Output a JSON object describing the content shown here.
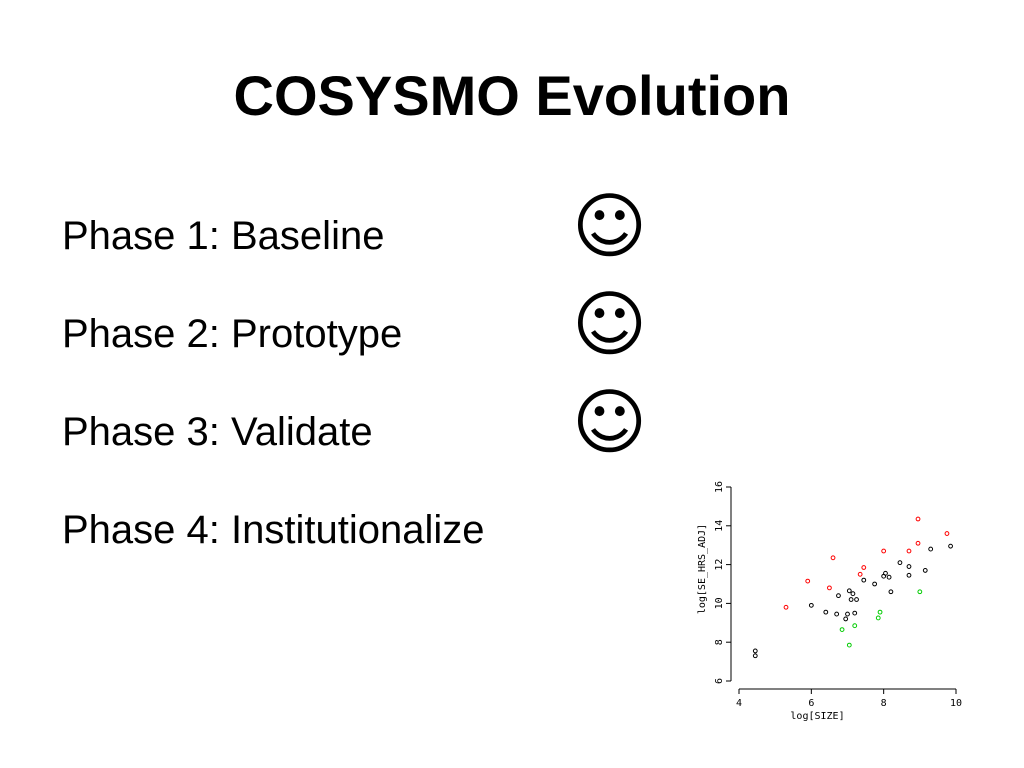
{
  "slide": {
    "title": "COSYSMO Evolution",
    "phases": [
      {
        "label": "Phase 1: Baseline",
        "icon": "smiley-icon",
        "symbol": "☺"
      },
      {
        "label": "Phase 2: Prototype",
        "icon": "smiley-icon",
        "symbol": "☺"
      },
      {
        "label": "Phase 3: Validate",
        "icon": "smiley-icon",
        "symbol": "☺"
      },
      {
        "label": "Phase 4: Institutionalize"
      }
    ]
  },
  "chart_data": {
    "type": "scatter",
    "title": "",
    "xlabel": "log[SIZE]",
    "ylabel": "log[SE_HRS_ADJ]",
    "xlim": [
      4,
      10
    ],
    "ylim": [
      6,
      16
    ],
    "xticks": [
      4,
      6,
      8,
      10
    ],
    "yticks": [
      6,
      8,
      10,
      12,
      14,
      16
    ],
    "grid": false,
    "series": [
      {
        "color": "#000000",
        "points": [
          [
            4.45,
            7.55
          ],
          [
            4.45,
            7.3
          ],
          [
            6.0,
            9.9
          ],
          [
            6.4,
            9.55
          ],
          [
            6.7,
            9.45
          ],
          [
            6.75,
            10.4
          ],
          [
            6.95,
            9.2
          ],
          [
            7.0,
            9.45
          ],
          [
            7.05,
            10.65
          ],
          [
            7.15,
            10.5
          ],
          [
            7.1,
            10.2
          ],
          [
            7.25,
            10.2
          ],
          [
            7.2,
            9.5
          ],
          [
            7.45,
            11.2
          ],
          [
            7.75,
            11.0
          ],
          [
            8.0,
            11.4
          ],
          [
            8.05,
            11.55
          ],
          [
            8.15,
            11.35
          ],
          [
            8.2,
            10.6
          ],
          [
            8.45,
            12.1
          ],
          [
            8.7,
            11.45
          ],
          [
            8.7,
            11.9
          ],
          [
            9.15,
            11.7
          ],
          [
            9.3,
            12.8
          ],
          [
            9.85,
            12.95
          ]
        ]
      },
      {
        "color": "#ff0000",
        "points": [
          [
            5.3,
            9.8
          ],
          [
            5.9,
            11.15
          ],
          [
            6.5,
            10.8
          ],
          [
            6.6,
            12.35
          ],
          [
            7.35,
            11.5
          ],
          [
            7.45,
            11.85
          ],
          [
            8.0,
            12.7
          ],
          [
            8.7,
            12.7
          ],
          [
            8.95,
            13.1
          ],
          [
            8.95,
            14.35
          ],
          [
            9.75,
            13.6
          ]
        ]
      },
      {
        "color": "#00cc00",
        "points": [
          [
            6.85,
            8.65
          ],
          [
            7.05,
            7.85
          ],
          [
            7.2,
            8.85
          ],
          [
            7.85,
            9.25
          ],
          [
            7.9,
            9.55
          ],
          [
            9.0,
            10.6
          ]
        ]
      }
    ]
  }
}
